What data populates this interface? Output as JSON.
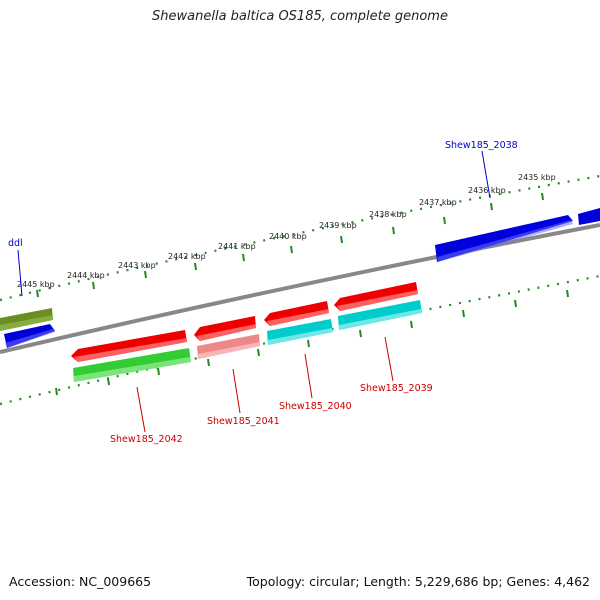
{
  "title": "Shewanella baltica OS185, complete genome",
  "footer": {
    "accession": "Accession: NC_009665",
    "stats": "Topology: circular; Length: 5,229,686 bp; Genes: 4,462"
  },
  "colors": {
    "backbone": "#888888",
    "ruler": "#228b22",
    "blue_gene": "#0000dd",
    "red_gene": "#ee0000",
    "pink_gene": "#ee8888",
    "green_gene": "#33cc33",
    "cyan_gene": "#00cccc",
    "olive_gene": "#6b8e23",
    "label_red": "#cc0000",
    "label_blue": "#0000cc"
  },
  "kbp_ticks": [
    "2435 kbp",
    "2436 kbp",
    "2437 kbp",
    "2438 kbp",
    "2439 kbp",
    "2440 kbp",
    "2441 kbp",
    "2442 kbp",
    "2443 kbp",
    "2444 kbp",
    "2445 kbp"
  ],
  "gene_labels": {
    "shew2038": "Shew185_2038",
    "ddl": "ddl",
    "shew2039": "Shew185_2039",
    "shew2040": "Shew185_2040",
    "shew2041": "Shew185_2041",
    "shew2042": "Shew185_2042"
  }
}
